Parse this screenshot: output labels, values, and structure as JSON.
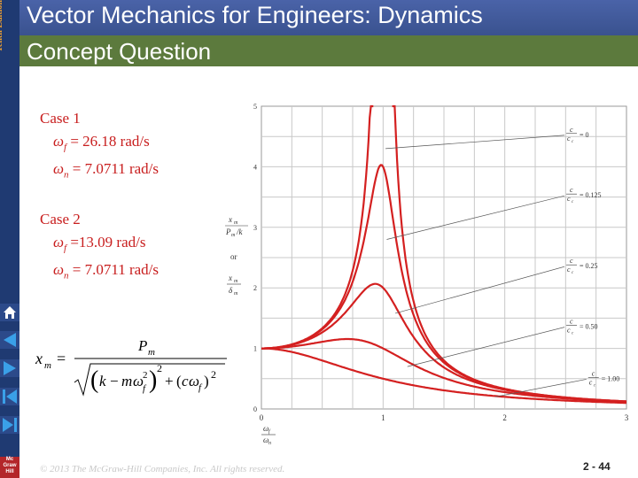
{
  "header": {
    "edition": "Tenth Edition",
    "title": "Vector Mechanics for Engineers: Dynamics",
    "subtitle": "Concept Question"
  },
  "cases": [
    {
      "label": "Case 1",
      "omega_f": "= 26.18 rad/s",
      "omega_n": "= 7.0711 rad/s"
    },
    {
      "label": "Case 2",
      "omega_f": "=13.09 rad/s",
      "omega_n": "= 7.0711 rad/s"
    }
  ],
  "symbols": {
    "omega": "ω",
    "sub_f": "f",
    "sub_n": "n"
  },
  "formula": {
    "lhs": "x",
    "lhs_sub": "m",
    "eq": "=",
    "numer": "P",
    "numer_sub": "m",
    "k": "k",
    "minus": "−",
    "m": "m",
    "omega": "ω",
    "sub_f": "f",
    "exp2": "2",
    "plus": "+",
    "c": "c",
    "lparen": "(",
    "rparen": ")"
  },
  "nav": {
    "home_icon": "home-icon",
    "prev_icon": "previous-slide-icon",
    "next_icon": "next-slide-icon",
    "first_icon": "first-slide-icon",
    "last_icon": "last-slide-icon",
    "logo_text": "Mc Graw Hill"
  },
  "footer": {
    "copyright": "© 2013 The McGraw-Hill Companies, Inc. All rights reserved.",
    "page": "2 - 44"
  },
  "colors": {
    "header_blue": "#4a63a8",
    "subheader_green": "#5c7a3d",
    "text_red": "#c81e1e",
    "curve_red": "#d42020",
    "edition_orange": "#f0a030"
  },
  "chart_data": {
    "type": "line",
    "xlim": [
      0,
      3
    ],
    "ylim": [
      0,
      5
    ],
    "x_ticks": [
      "0",
      "1",
      "2",
      "3"
    ],
    "y_ticks": [
      "0",
      "1",
      "2",
      "3",
      "4",
      "5"
    ],
    "grid": true,
    "ylabel_parts": {
      "top_num": "x",
      "top_num_sub": "m",
      "top_den": "P",
      "top_den_sub": "m",
      "top_den_tail": "/k",
      "or": "or",
      "bot_num": "x",
      "bot_num_sub": "m",
      "bot_den": "δ",
      "bot_den_sub": "m"
    },
    "xlabel_parts": {
      "num": "ω",
      "num_sub": "f",
      "den": "ω",
      "den_sub": "n"
    },
    "series": [
      {
        "ratio": 0,
        "label": "= 0",
        "peak": null
      },
      {
        "ratio": 0.125,
        "label": "= 0.125",
        "peak": 4.0
      },
      {
        "ratio": 0.25,
        "label": "= 0.25",
        "peak": 2.0
      },
      {
        "ratio": 0.5,
        "label": "= 0.50",
        "peak": 1.15
      },
      {
        "ratio": 1.0,
        "label": "= 1.00",
        "peak": null
      }
    ],
    "annotation_frac": {
      "num": "c",
      "den": "c",
      "den_sub": "c"
    }
  }
}
